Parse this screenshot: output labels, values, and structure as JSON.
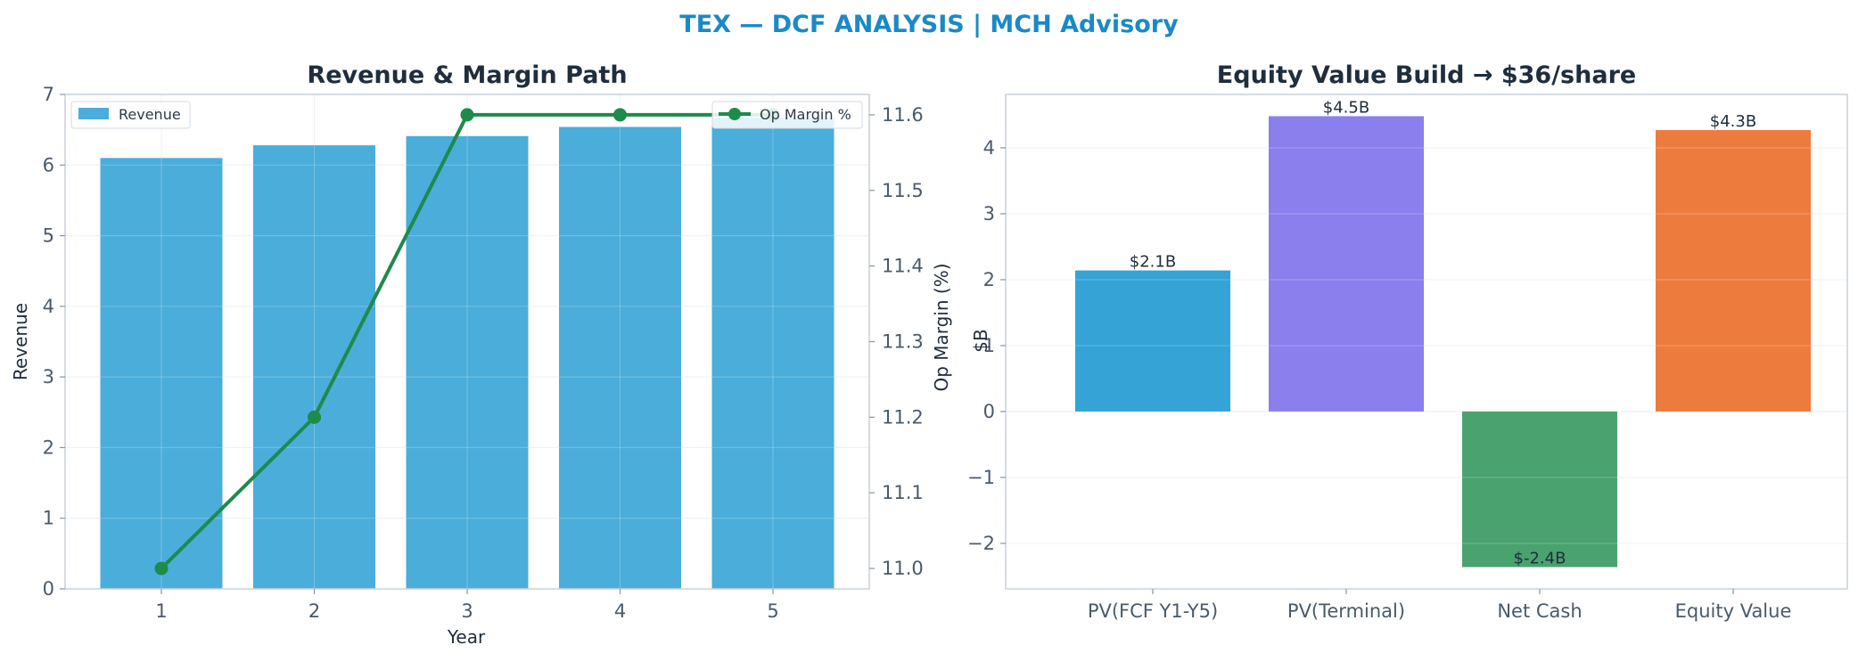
{
  "figure_title": "TEX — DCF ANALYSIS | MCH Advisory",
  "colors": {
    "title": "#1a8ac6",
    "revenue_bar": "#4badd9",
    "margin_line": "#1e8a4c",
    "pv_fcf": "#35a3d5",
    "pv_terminal": "#8a7fec",
    "net_cash": "#4aa26f",
    "equity_value": "#ee7b3e"
  },
  "chart_data": [
    {
      "type": "bar",
      "title": "Revenue & Margin Path",
      "xlabel": "Year",
      "ylabel": "Revenue",
      "y2label": "Op Margin (%)",
      "categories": [
        "1",
        "2",
        "3",
        "4",
        "5"
      ],
      "ylim": [
        0,
        7
      ],
      "yticks": [
        0,
        1,
        2,
        3,
        4,
        5,
        6,
        7
      ],
      "y2lim": [
        10.973,
        11.627
      ],
      "y2ticks": [
        11.0,
        11.1,
        11.2,
        11.3,
        11.4,
        11.5,
        11.6
      ],
      "grid": true,
      "series": [
        {
          "name": "Revenue",
          "kind": "bar",
          "axis": "left",
          "values": [
            6.1,
            6.28,
            6.41,
            6.54,
            6.67
          ]
        },
        {
          "name": "Op Margin %",
          "kind": "line",
          "axis": "right",
          "values": [
            11.0,
            11.2,
            11.6,
            11.6,
            11.6
          ]
        }
      ],
      "legend": [
        {
          "label": "Revenue",
          "placement": "top-left"
        },
        {
          "label": "Op Margin %",
          "placement": "top-right"
        }
      ]
    },
    {
      "type": "bar",
      "title": "Equity Value Build → $36/share",
      "xlabel": "",
      "ylabel": "$B",
      "categories": [
        "PV(FCF Y1-Y5)",
        "PV(Terminal)",
        "Net Cash",
        "Equity Value"
      ],
      "values": [
        2.14,
        4.48,
        -2.36,
        4.27
      ],
      "data_labels": [
        "$2.1B",
        "$4.5B",
        "$-2.4B",
        "$4.3B"
      ],
      "ylim": [
        -2.69,
        4.81
      ],
      "yticks": [
        -2,
        -1,
        0,
        1,
        2,
        3,
        4
      ],
      "ytick_labels": [
        "−2",
        "−1",
        "0",
        "1",
        "2",
        "3",
        "4"
      ],
      "grid": true
    }
  ]
}
